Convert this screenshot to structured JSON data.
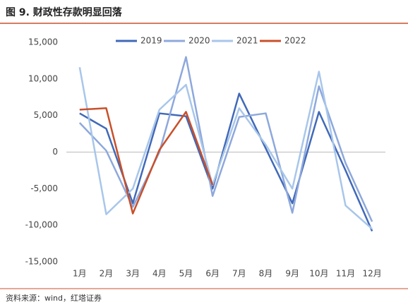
{
  "chart_data": {
    "type": "line",
    "title": "图 9. 财政性存款明显回落",
    "source": "资料来源：wind，红塔证券",
    "categories": [
      "1月",
      "2月",
      "3月",
      "4月",
      "5月",
      "6月",
      "7月",
      "8月",
      "9月",
      "10月",
      "11月",
      "12月"
    ],
    "series": [
      {
        "name": "2019",
        "color": "#4169b8",
        "values": [
          5300,
          3200,
          -7000,
          5300,
          4900,
          -5000,
          8000,
          500,
          -7000,
          5500,
          -2500,
          -10800
        ]
      },
      {
        "name": "2020",
        "color": "#8ea8dc",
        "values": [
          4000,
          200,
          -7500,
          0,
          13000,
          -6000,
          4800,
          5300,
          -8300,
          9000,
          -1500,
          -9500
        ]
      },
      {
        "name": "2021",
        "color": "#a8c6ea",
        "values": [
          11600,
          -8500,
          -5000,
          5800,
          9200,
          -4500,
          6000,
          1000,
          -5000,
          11000,
          -7300,
          -10500
        ]
      },
      {
        "name": "2022",
        "color": "#c8502b",
        "values": [
          5800,
          6000,
          -8400,
          300,
          5500,
          -4500,
          null,
          null,
          null,
          null,
          null,
          null
        ]
      }
    ],
    "ylim": [
      -15000,
      15000
    ],
    "yticks": [
      {
        "value": -15000,
        "label": "-15,000"
      },
      {
        "value": -10000,
        "label": "-10,000"
      },
      {
        "value": -5000,
        "label": "-5,000"
      },
      0,
      {
        "value": 5000,
        "label": "5,000"
      },
      {
        "value": 10000,
        "label": "10,000"
      },
      {
        "value": 15000,
        "label": "15,000"
      }
    ],
    "grid": false,
    "legend": "top"
  }
}
